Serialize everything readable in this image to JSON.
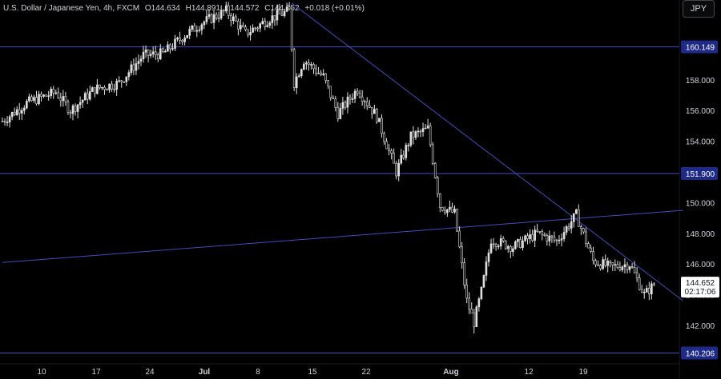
{
  "header": {
    "symbol": "U.S. Dollar / Japanese Yen, 4h, FXCM",
    "open": "O144.634",
    "high": "H144.891",
    "low": "L144.572",
    "close": "C144.652",
    "change": "+0.018 (+0.01%)"
  },
  "currency_button": "JPY",
  "colors": {
    "background": "#000000",
    "candle": "#e0e0e0",
    "line": "#3f4cc2",
    "label_bg": "#1e2a88",
    "text": "#d1d4dc",
    "price_tag_bg": "#ffffff",
    "price_tag_text": "#131722"
  },
  "chart_data": {
    "type": "candlestick",
    "y_ticks": [
      142,
      144,
      146,
      148,
      150,
      152,
      154,
      156,
      158
    ],
    "ylim": [
      139.5,
      163.2
    ],
    "x_ticks": [
      "10",
      "17",
      "24",
      "Jul",
      "8",
      "15",
      "22",
      "Aug",
      "12",
      "19"
    ],
    "horizontal_levels": [
      {
        "value": 160.149,
        "label": "160.149"
      },
      {
        "value": 151.9,
        "label": "151.900"
      },
      {
        "value": 140.206,
        "label": "140.206"
      }
    ],
    "trendlines": [
      {
        "from": {
          "bar": 0,
          "value": 146.1
        },
        "to": {
          "bar": 280,
          "value": 149.5
        }
      },
      {
        "from": {
          "bar": 119,
          "value": 163.0
        },
        "to": {
          "bar": 280,
          "value": 143.6
        }
      }
    ],
    "current_price": {
      "value": 144.652,
      "label": "144.652",
      "countdown": "02:17:06"
    },
    "price_anchors": [
      {
        "bar": 0,
        "value": 155.3
      },
      {
        "bar": 10,
        "value": 156.5
      },
      {
        "bar": 22,
        "value": 157.2
      },
      {
        "bar": 28,
        "value": 156.0
      },
      {
        "bar": 38,
        "value": 157.4
      },
      {
        "bar": 48,
        "value": 157.8
      },
      {
        "bar": 58,
        "value": 159.6
      },
      {
        "bar": 66,
        "value": 159.7
      },
      {
        "bar": 75,
        "value": 160.9
      },
      {
        "bar": 82,
        "value": 161.7
      },
      {
        "bar": 92,
        "value": 162.5
      },
      {
        "bar": 100,
        "value": 161.0
      },
      {
        "bar": 110,
        "value": 162.0
      },
      {
        "bar": 118,
        "value": 162.5
      },
      {
        "bar": 120,
        "value": 157.8
      },
      {
        "bar": 124,
        "value": 159.3
      },
      {
        "bar": 132,
        "value": 158.2
      },
      {
        "bar": 138,
        "value": 155.8
      },
      {
        "bar": 146,
        "value": 157.4
      },
      {
        "bar": 154,
        "value": 155.6
      },
      {
        "bar": 162,
        "value": 152.0
      },
      {
        "bar": 168,
        "value": 154.3
      },
      {
        "bar": 175,
        "value": 154.8
      },
      {
        "bar": 180,
        "value": 149.8
      },
      {
        "bar": 186,
        "value": 149.3
      },
      {
        "bar": 191,
        "value": 143.6
      },
      {
        "bar": 194,
        "value": 142.2
      },
      {
        "bar": 197,
        "value": 144.2
      },
      {
        "bar": 201,
        "value": 147.6
      },
      {
        "bar": 210,
        "value": 147.1
      },
      {
        "bar": 220,
        "value": 148.0
      },
      {
        "bar": 228,
        "value": 147.5
      },
      {
        "bar": 236,
        "value": 149.2
      },
      {
        "bar": 243,
        "value": 146.2
      },
      {
        "bar": 250,
        "value": 145.8
      },
      {
        "bar": 258,
        "value": 146.0
      },
      {
        "bar": 264,
        "value": 144.0
      },
      {
        "bar": 268,
        "value": 144.65
      }
    ]
  }
}
